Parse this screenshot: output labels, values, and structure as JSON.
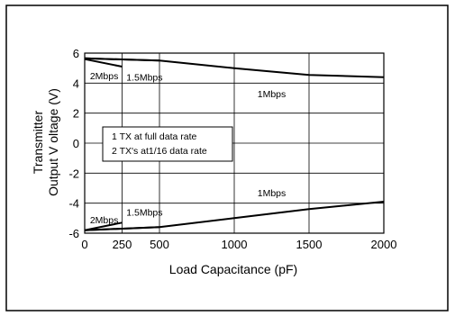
{
  "chart_data": {
    "type": "line",
    "xlabel": "Load Capacitance (pF)",
    "ylabel_line1": "Transmitter",
    "ylabel_line2": "Output V oltage (V)",
    "xlim": [
      0,
      2000
    ],
    "ylim": [
      -6,
      6
    ],
    "x_ticks": [
      0,
      250,
      500,
      1000,
      1500,
      2000
    ],
    "y_ticks": [
      6,
      4,
      2,
      0,
      -2,
      -4,
      -6
    ],
    "grid": true,
    "legend_box": [
      "1 TX at full data rate",
      "2 TX's at1/16 data rate"
    ],
    "series": [
      {
        "name": "2Mbps",
        "x": [
          0,
          250
        ],
        "y": [
          5.6,
          5.1
        ]
      },
      {
        "name": "1.5Mbps",
        "x": [
          0,
          500
        ],
        "y": [
          5.65,
          5.5
        ]
      },
      {
        "name": "1Mbps",
        "x": [
          0,
          500,
          1000,
          1500,
          2000
        ],
        "y": [
          5.65,
          5.5,
          5.0,
          4.55,
          4.4
        ]
      },
      {
        "name": "2Mbps",
        "x": [
          0,
          250
        ],
        "y": [
          -5.8,
          -5.3
        ]
      },
      {
        "name": "1.5Mbps",
        "x": [
          0,
          500
        ],
        "y": [
          -5.8,
          -5.6
        ]
      },
      {
        "name": "1Mbps",
        "x": [
          0,
          500,
          1000,
          1500,
          2000
        ],
        "y": [
          -5.8,
          -5.6,
          -5.0,
          -4.4,
          -3.9
        ]
      }
    ],
    "annotations": [
      {
        "text": "2Mbps",
        "x": 130,
        "y": 4.5
      },
      {
        "text": "1.5Mbps",
        "x": 400,
        "y": 4.4
      },
      {
        "text": "1Mbps",
        "x": 1250,
        "y": 3.3
      },
      {
        "text": "1Mbps",
        "x": 1250,
        "y": -3.3
      },
      {
        "text": "1.5Mbps",
        "x": 400,
        "y": -4.6
      },
      {
        "text": "2Mbps",
        "x": 130,
        "y": -5.1
      }
    ]
  }
}
